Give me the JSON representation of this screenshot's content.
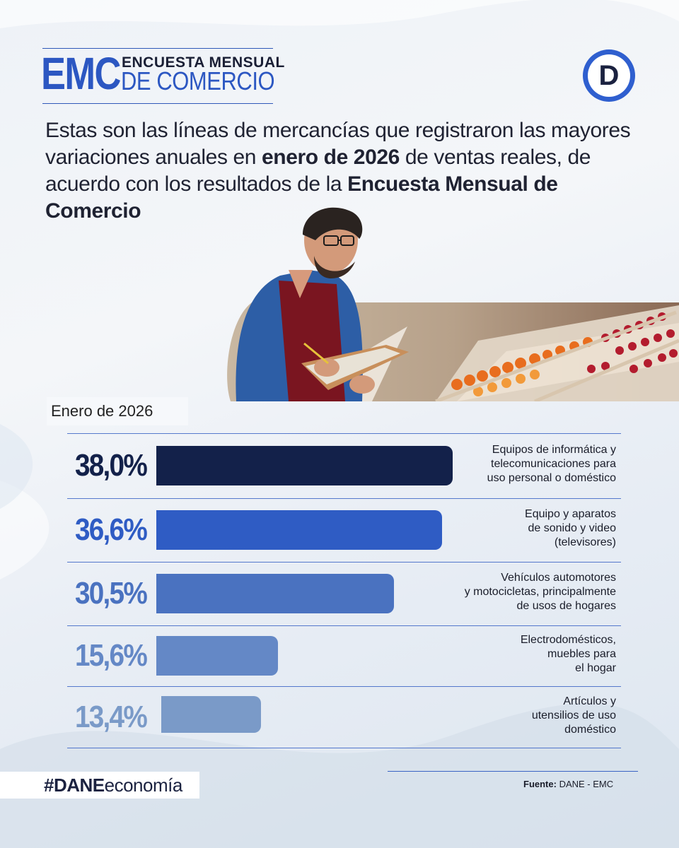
{
  "header": {
    "logo_main": "EMC",
    "logo_sub1": "ENCUESTA MENSUAL",
    "logo_sub2": "DE COMERCIO",
    "brand_icon": "D"
  },
  "intro": {
    "part1": "Estas son las líneas de mercancías que registraron las mayores variaciones anuales en ",
    "bold1": "enero de 2026",
    "part2": " de ventas reales, de acuerdo con los resultados de la ",
    "bold2": "Encuesta Mensual de Comercio"
  },
  "period_tag": "Enero de 2026",
  "chart_data": {
    "type": "bar",
    "orientation": "horizontal",
    "categories": [
      "Equipos de informática y telecomunicaciones para uso personal o doméstico",
      "Equipo y aparatos de sonido y video (televisores)",
      "Vehículos automotores y motocicletas, principalmente de usos de hogares",
      "Electrodomésticos, muebles para el hogar",
      "Artículos y utensilios de uso doméstico"
    ],
    "category_lines": [
      [
        "Equipos de informática y",
        "telecomunicaciones para",
        "uso personal o doméstico"
      ],
      [
        "Equipo y aparatos",
        "de sonido y video",
        "(televisores)"
      ],
      [
        "Vehículos automotores",
        "y motocicletas, principalmente",
        "de usos de hogares"
      ],
      [
        "Electrodomésticos,",
        "muebles para",
        "el hogar"
      ],
      [
        "Artículos y",
        "utensilios de uso",
        "doméstico"
      ]
    ],
    "values": [
      38.0,
      36.6,
      30.5,
      15.6,
      13.4
    ],
    "labels": [
      "38,0%",
      "36,6%",
      "30,5%",
      "15,6%",
      "13,4%"
    ],
    "colors": [
      "#13214a",
      "#2f5cc4",
      "#4a72c0",
      "#6488c6",
      "#7a9ac8"
    ],
    "xlim": [
      0,
      38.0
    ]
  },
  "footer": {
    "hashtag_bold": "#DANE",
    "hashtag_rest": "economía",
    "source_label": "Fuente:",
    "source_value": " DANE - EMC"
  }
}
